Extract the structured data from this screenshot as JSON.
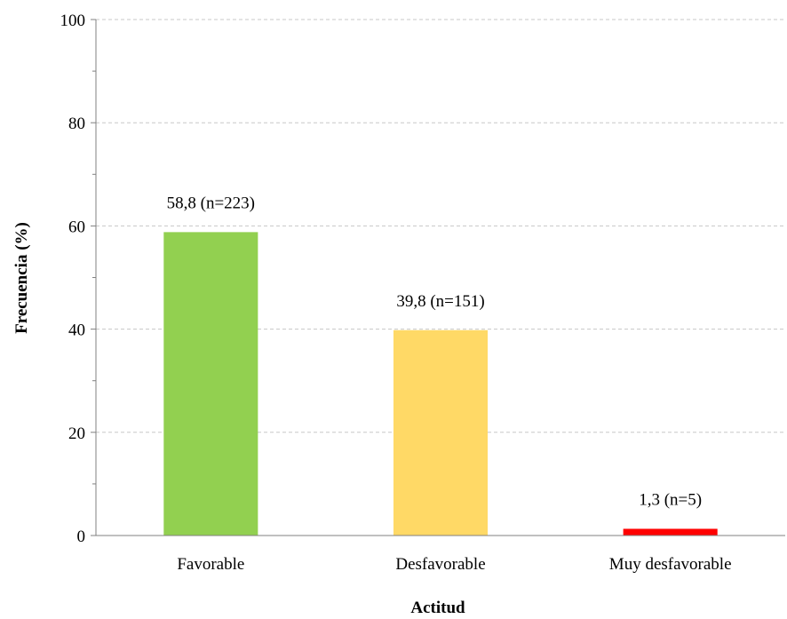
{
  "chart_data": {
    "type": "bar",
    "categories": [
      "Favorable",
      "Desfavorable",
      "Muy desfavorable"
    ],
    "values": [
      58.8,
      39.8,
      1.3
    ],
    "data_labels": [
      "58,8 (n=223)",
      "39,8 (n=151)",
      "1,3 (n=5)"
    ],
    "colors": [
      "#92d050",
      "#ffd966",
      "#ff0000"
    ],
    "xlabel": "Actitud",
    "ylabel": "Frecuencia (%)",
    "ylim": [
      0,
      100
    ],
    "yticks": [
      0,
      20,
      40,
      60,
      80,
      100
    ],
    "ytick_labels": [
      "0",
      "20",
      "40",
      "60",
      "80",
      "100"
    ],
    "grid": true,
    "legend": "none"
  }
}
